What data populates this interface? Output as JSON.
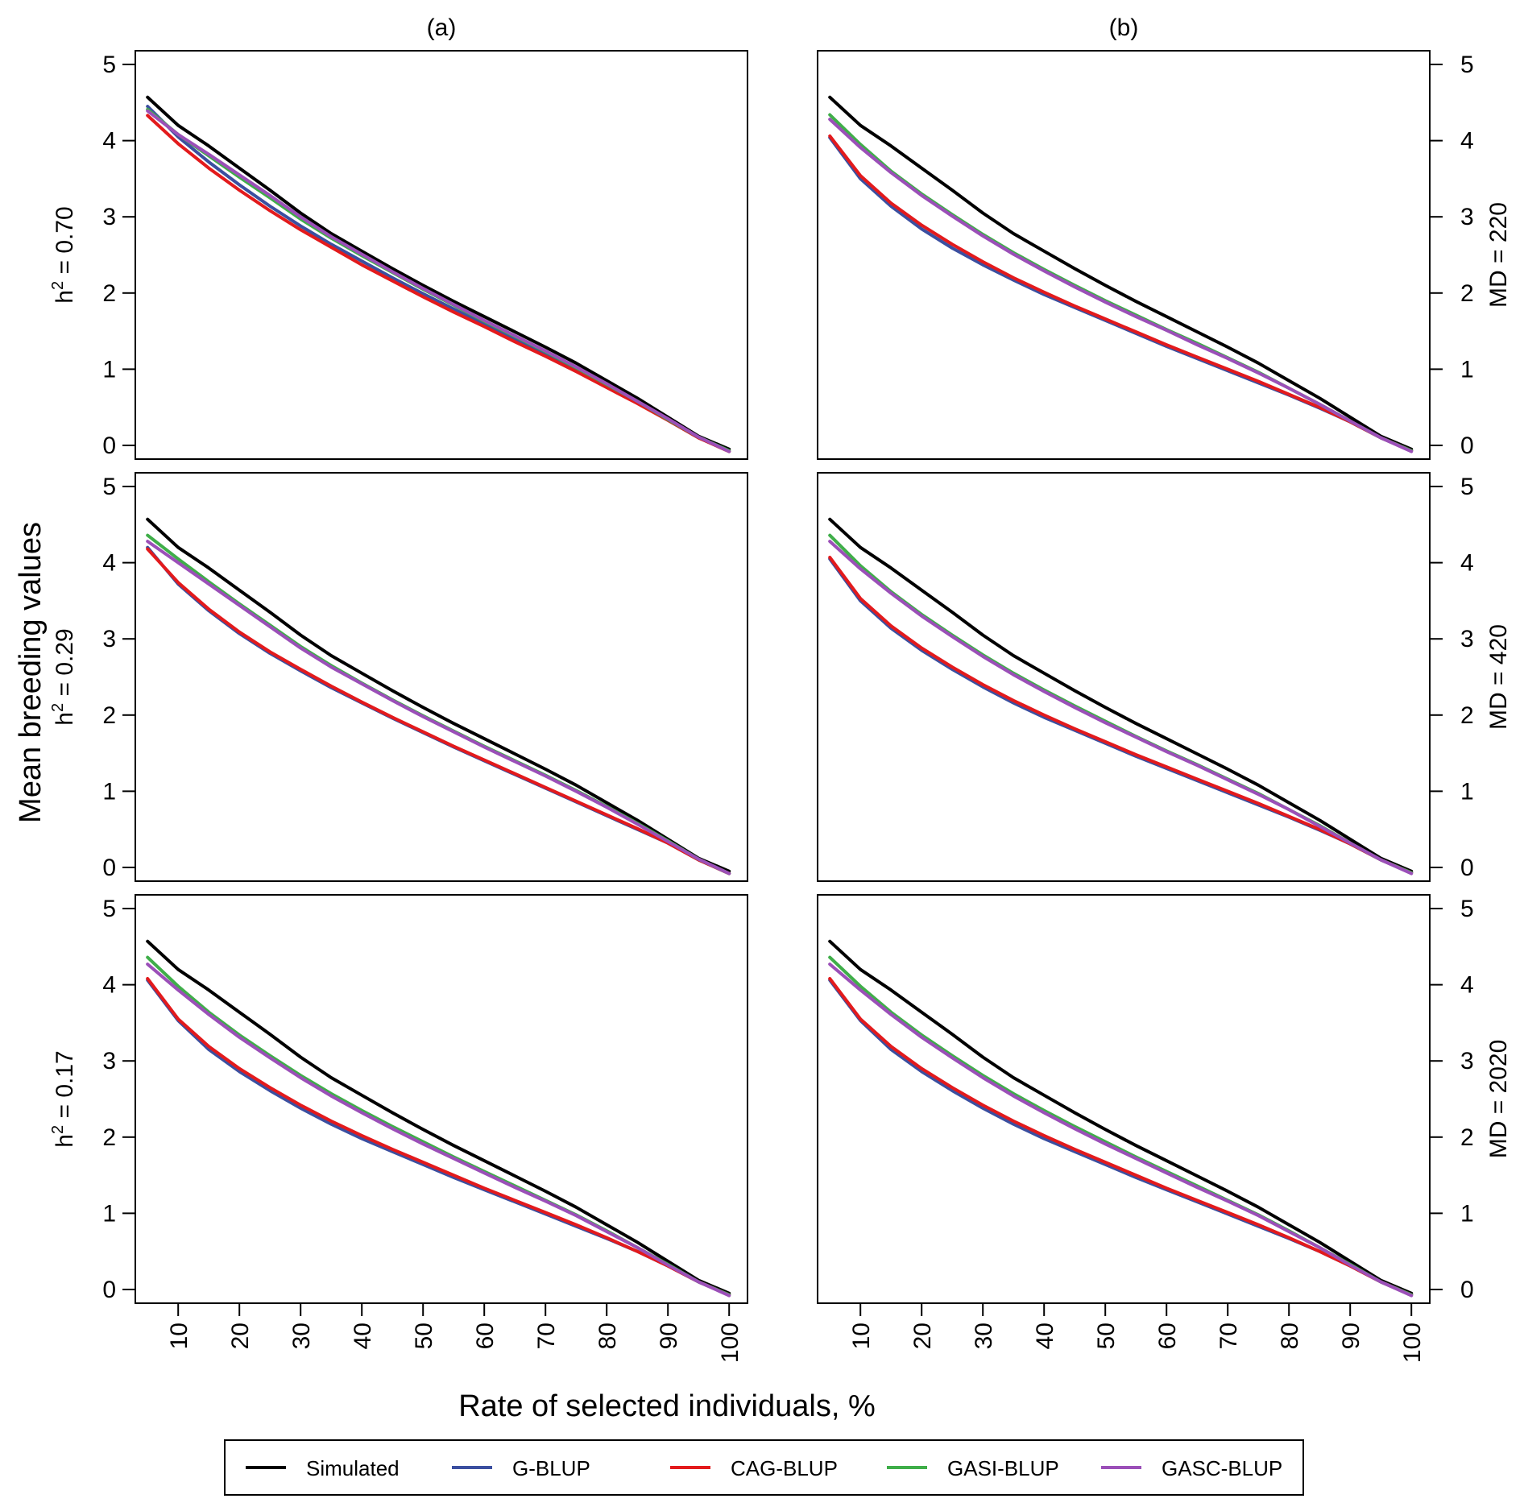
{
  "chart_data": {
    "type": "line",
    "ylabel": "Mean breeding values",
    "xlabel": "Rate of selected individuals, %",
    "x": [
      5,
      10,
      15,
      20,
      25,
      30,
      35,
      40,
      45,
      50,
      55,
      60,
      65,
      70,
      75,
      80,
      85,
      90,
      95,
      100
    ],
    "x_ticks": [
      10,
      20,
      30,
      40,
      50,
      60,
      70,
      80,
      90,
      100
    ],
    "y_ticks": [
      0,
      1,
      2,
      3,
      4,
      5
    ],
    "xlim": [
      3,
      103
    ],
    "ylim": [
      -0.18,
      5.18
    ],
    "columns": [
      "(a)",
      "(b)"
    ],
    "row_labels_left": [
      {
        "base": "h",
        "sup": "2",
        "rest": " = 0.70"
      },
      {
        "base": "h",
        "sup": "2",
        "rest": " = 0.29"
      },
      {
        "base": "h",
        "sup": "2",
        "rest": " = 0.17"
      }
    ],
    "row_labels_right": [
      "MD = 220",
      "MD = 420",
      "MD = 2020"
    ],
    "legend": [
      {
        "name": "Simulated",
        "color": "#000000"
      },
      {
        "name": "G-BLUP",
        "color": "#3B4FA0"
      },
      {
        "name": "CAG-BLUP",
        "color": "#E31A1C"
      },
      {
        "name": "GASI-BLUP",
        "color": "#3FAE49"
      },
      {
        "name": "GASC-BLUP",
        "color": "#9B4FB8"
      }
    ],
    "panels": [
      {
        "column": "(a)",
        "row_label": "h2 = 0.70",
        "series": [
          {
            "name": "Simulated",
            "values": [
              4.57,
              4.2,
              3.93,
              3.64,
              3.35,
              3.05,
              2.78,
              2.55,
              2.32,
              2.1,
              1.89,
              1.69,
              1.49,
              1.29,
              1.08,
              0.85,
              0.62,
              0.37,
              0.12,
              -0.05
            ]
          },
          {
            "name": "G-BLUP",
            "values": [
              4.45,
              4.05,
              3.72,
              3.42,
              3.14,
              2.88,
              2.64,
              2.42,
              2.2,
              1.99,
              1.79,
              1.59,
              1.39,
              1.19,
              0.99,
              0.78,
              0.56,
              0.33,
              0.1,
              -0.08
            ]
          },
          {
            "name": "CAG-BLUP",
            "values": [
              4.33,
              3.96,
              3.64,
              3.35,
              3.08,
              2.83,
              2.6,
              2.37,
              2.16,
              1.95,
              1.75,
              1.56,
              1.36,
              1.17,
              0.97,
              0.76,
              0.55,
              0.33,
              0.1,
              -0.08
            ]
          },
          {
            "name": "GASI-BLUP",
            "values": [
              4.41,
              4.08,
              3.8,
              3.52,
              3.25,
              2.97,
              2.72,
              2.49,
              2.27,
              2.05,
              1.84,
              1.63,
              1.43,
              1.23,
              1.02,
              0.8,
              0.58,
              0.34,
              0.11,
              -0.07
            ]
          },
          {
            "name": "GASC-BLUP",
            "values": [
              4.39,
              4.08,
              3.82,
              3.55,
              3.28,
              3.0,
              2.74,
              2.51,
              2.28,
              2.06,
              1.85,
              1.64,
              1.44,
              1.24,
              1.03,
              0.81,
              0.58,
              0.35,
              0.11,
              -0.08
            ]
          }
        ]
      },
      {
        "column": "(b)",
        "row_label": "MD = 220",
        "series": [
          {
            "name": "Simulated",
            "values": [
              4.57,
              4.2,
              3.93,
              3.64,
              3.35,
              3.05,
              2.78,
              2.55,
              2.32,
              2.1,
              1.89,
              1.69,
              1.49,
              1.29,
              1.08,
              0.85,
              0.62,
              0.37,
              0.12,
              -0.05
            ]
          },
          {
            "name": "G-BLUP",
            "values": [
              4.04,
              3.5,
              3.14,
              2.84,
              2.59,
              2.37,
              2.17,
              1.98,
              1.81,
              1.64,
              1.47,
              1.3,
              1.14,
              0.98,
              0.82,
              0.66,
              0.49,
              0.31,
              0.1,
              -0.07
            ]
          },
          {
            "name": "CAG-BLUP",
            "values": [
              4.06,
              3.54,
              3.18,
              2.89,
              2.64,
              2.41,
              2.2,
              2.01,
              1.83,
              1.66,
              1.49,
              1.32,
              1.16,
              1.0,
              0.84,
              0.67,
              0.5,
              0.31,
              0.1,
              -0.07
            ]
          },
          {
            "name": "GASI-BLUP",
            "values": [
              4.34,
              3.95,
              3.6,
              3.3,
              3.03,
              2.77,
              2.53,
              2.31,
              2.1,
              1.9,
              1.71,
              1.52,
              1.34,
              1.15,
              0.96,
              0.75,
              0.54,
              0.32,
              0.1,
              -0.07
            ]
          },
          {
            "name": "GASC-BLUP",
            "values": [
              4.28,
              3.91,
              3.58,
              3.28,
              3.01,
              2.75,
              2.51,
              2.29,
              2.08,
              1.88,
              1.69,
              1.51,
              1.32,
              1.14,
              0.95,
              0.75,
              0.54,
              0.32,
              0.1,
              -0.08
            ]
          }
        ]
      },
      {
        "column": "(a)",
        "row_label": "h2 = 0.29",
        "series": [
          {
            "name": "Simulated",
            "values": [
              4.57,
              4.2,
              3.93,
              3.64,
              3.35,
              3.05,
              2.78,
              2.55,
              2.32,
              2.1,
              1.89,
              1.69,
              1.49,
              1.29,
              1.08,
              0.85,
              0.62,
              0.37,
              0.12,
              -0.05
            ]
          },
          {
            "name": "G-BLUP",
            "values": [
              4.2,
              3.72,
              3.37,
              3.07,
              2.81,
              2.58,
              2.36,
              2.16,
              1.96,
              1.77,
              1.58,
              1.4,
              1.22,
              1.04,
              0.86,
              0.68,
              0.5,
              0.32,
              0.1,
              -0.08
            ]
          },
          {
            "name": "CAG-BLUP",
            "values": [
              4.18,
              3.74,
              3.39,
              3.09,
              2.83,
              2.6,
              2.38,
              2.17,
              1.97,
              1.78,
              1.59,
              1.41,
              1.23,
              1.05,
              0.87,
              0.69,
              0.51,
              0.32,
              0.1,
              -0.08
            ]
          },
          {
            "name": "GASI-BLUP",
            "values": [
              4.36,
              4.05,
              3.75,
              3.46,
              3.18,
              2.9,
              2.65,
              2.42,
              2.2,
              1.99,
              1.79,
              1.59,
              1.4,
              1.21,
              1.01,
              0.8,
              0.58,
              0.35,
              0.11,
              -0.08
            ]
          },
          {
            "name": "GASC-BLUP",
            "values": [
              4.28,
              4.0,
              3.72,
              3.44,
              3.16,
              2.88,
              2.63,
              2.41,
              2.19,
              1.98,
              1.78,
              1.58,
              1.39,
              1.2,
              1.0,
              0.79,
              0.57,
              0.34,
              0.11,
              -0.08
            ]
          }
        ]
      },
      {
        "column": "(b)",
        "row_label": "MD = 420",
        "series": [
          {
            "name": "Simulated",
            "values": [
              4.57,
              4.2,
              3.93,
              3.64,
              3.35,
              3.05,
              2.78,
              2.55,
              2.32,
              2.1,
              1.89,
              1.69,
              1.49,
              1.29,
              1.08,
              0.85,
              0.62,
              0.37,
              0.12,
              -0.05
            ]
          },
          {
            "name": "G-BLUP",
            "values": [
              4.05,
              3.5,
              3.14,
              2.85,
              2.6,
              2.37,
              2.16,
              1.97,
              1.8,
              1.63,
              1.46,
              1.3,
              1.14,
              0.98,
              0.82,
              0.66,
              0.49,
              0.31,
              0.1,
              -0.07
            ]
          },
          {
            "name": "CAG-BLUP",
            "values": [
              4.07,
              3.53,
              3.17,
              2.88,
              2.63,
              2.4,
              2.19,
              2.0,
              1.82,
              1.65,
              1.48,
              1.32,
              1.16,
              1.0,
              0.84,
              0.67,
              0.5,
              0.31,
              0.1,
              -0.07
            ]
          },
          {
            "name": "GASI-BLUP",
            "values": [
              4.36,
              3.96,
              3.62,
              3.32,
              3.05,
              2.79,
              2.55,
              2.33,
              2.12,
              1.92,
              1.72,
              1.53,
              1.35,
              1.16,
              0.97,
              0.76,
              0.55,
              0.32,
              0.1,
              -0.07
            ]
          },
          {
            "name": "GASC-BLUP",
            "values": [
              4.28,
              3.92,
              3.6,
              3.3,
              3.03,
              2.77,
              2.53,
              2.31,
              2.1,
              1.9,
              1.71,
              1.52,
              1.34,
              1.15,
              0.96,
              0.76,
              0.54,
              0.32,
              0.1,
              -0.08
            ]
          }
        ]
      },
      {
        "column": "(a)",
        "row_label": "h2 = 0.17",
        "series": [
          {
            "name": "Simulated",
            "values": [
              4.57,
              4.2,
              3.93,
              3.64,
              3.35,
              3.05,
              2.78,
              2.55,
              2.32,
              2.1,
              1.89,
              1.69,
              1.49,
              1.29,
              1.08,
              0.85,
              0.62,
              0.37,
              0.12,
              -0.05
            ]
          },
          {
            "name": "G-BLUP",
            "values": [
              4.06,
              3.53,
              3.15,
              2.86,
              2.61,
              2.38,
              2.17,
              1.98,
              1.81,
              1.64,
              1.47,
              1.31,
              1.15,
              0.99,
              0.83,
              0.67,
              0.5,
              0.31,
              0.1,
              -0.07
            ]
          },
          {
            "name": "CAG-BLUP",
            "values": [
              4.08,
              3.55,
              3.19,
              2.9,
              2.65,
              2.42,
              2.21,
              2.02,
              1.84,
              1.67,
              1.5,
              1.33,
              1.17,
              1.01,
              0.85,
              0.68,
              0.5,
              0.31,
              0.1,
              -0.07
            ]
          },
          {
            "name": "GASI-BLUP",
            "values": [
              4.36,
              3.98,
              3.64,
              3.34,
              3.07,
              2.81,
              2.57,
              2.35,
              2.14,
              1.94,
              1.74,
              1.55,
              1.36,
              1.17,
              0.98,
              0.77,
              0.55,
              0.33,
              0.1,
              -0.07
            ]
          },
          {
            "name": "GASC-BLUP",
            "values": [
              4.27,
              3.93,
              3.61,
              3.31,
              3.04,
              2.78,
              2.54,
              2.32,
              2.11,
              1.91,
              1.72,
              1.53,
              1.34,
              1.16,
              0.97,
              0.76,
              0.55,
              0.32,
              0.1,
              -0.08
            ]
          }
        ]
      },
      {
        "column": "(b)",
        "row_label": "MD = 2020",
        "series": [
          {
            "name": "Simulated",
            "values": [
              4.57,
              4.2,
              3.93,
              3.64,
              3.35,
              3.05,
              2.78,
              2.55,
              2.32,
              2.1,
              1.89,
              1.69,
              1.49,
              1.29,
              1.08,
              0.85,
              0.62,
              0.37,
              0.12,
              -0.05
            ]
          },
          {
            "name": "G-BLUP",
            "values": [
              4.06,
              3.53,
              3.15,
              2.86,
              2.61,
              2.38,
              2.17,
              1.98,
              1.81,
              1.64,
              1.47,
              1.31,
              1.15,
              0.99,
              0.83,
              0.67,
              0.5,
              0.31,
              0.1,
              -0.07
            ]
          },
          {
            "name": "CAG-BLUP",
            "values": [
              4.08,
              3.55,
              3.19,
              2.9,
              2.65,
              2.42,
              2.21,
              2.02,
              1.84,
              1.67,
              1.5,
              1.33,
              1.17,
              1.01,
              0.85,
              0.68,
              0.5,
              0.31,
              0.1,
              -0.07
            ]
          },
          {
            "name": "GASI-BLUP",
            "values": [
              4.36,
              3.98,
              3.64,
              3.34,
              3.07,
              2.81,
              2.57,
              2.35,
              2.14,
              1.94,
              1.74,
              1.55,
              1.36,
              1.17,
              0.98,
              0.77,
              0.55,
              0.33,
              0.1,
              -0.07
            ]
          },
          {
            "name": "GASC-BLUP",
            "values": [
              4.27,
              3.93,
              3.61,
              3.31,
              3.04,
              2.78,
              2.54,
              2.32,
              2.11,
              1.91,
              1.72,
              1.53,
              1.34,
              1.16,
              0.97,
              0.76,
              0.55,
              0.32,
              0.1,
              -0.08
            ]
          }
        ]
      }
    ]
  }
}
